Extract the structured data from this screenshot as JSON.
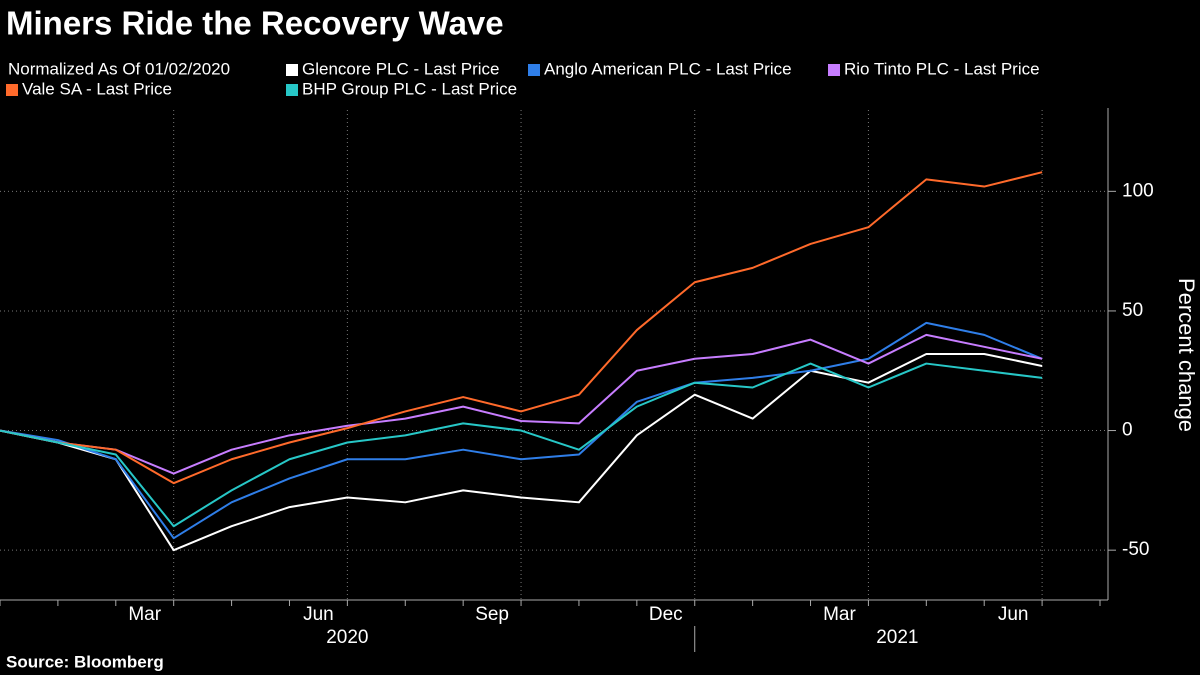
{
  "chart_data": {
    "type": "line",
    "title": "Miners Ride the Recovery Wave",
    "legend_title": "Normalized As Of 01/02/2020",
    "y_label": "Percent change",
    "source": "Source: Bloomberg",
    "x": [
      "2020-01",
      "2020-02",
      "2020-03",
      "2020-04",
      "2020-05",
      "2020-06",
      "2020-07",
      "2020-08",
      "2020-09",
      "2020-10",
      "2020-11",
      "2020-12",
      "2021-01",
      "2021-02",
      "2021-03",
      "2021-04",
      "2021-05",
      "2021-06",
      "2021-07"
    ],
    "xlim": [
      "2020-01",
      "2021-08"
    ],
    "xticks": [
      {
        "value": "2020-03",
        "label": "Mar"
      },
      {
        "value": "2020-06",
        "label": "Jun"
      },
      {
        "value": "2020-09",
        "label": "Sep"
      },
      {
        "value": "2020-12",
        "label": "Dec"
      },
      {
        "value": "2021-03",
        "label": "Mar"
      },
      {
        "value": "2021-06",
        "label": "Jun"
      }
    ],
    "year_labels": [
      "2020",
      "2021"
    ],
    "ylim": [
      -70,
      134
    ],
    "yticks": [
      -50,
      0,
      50,
      100
    ],
    "grid": true,
    "series": [
      {
        "name": "Glencore PLC - Last Price",
        "color": "#ffffff",
        "values": [
          0,
          -5,
          -12,
          -50,
          -40,
          -32,
          -28,
          -30,
          -25,
          -28,
          -30,
          -2,
          15,
          5,
          25,
          20,
          32,
          32,
          27
        ]
      },
      {
        "name": "Anglo American PLC - Last Price",
        "color": "#2f7ee8",
        "values": [
          0,
          -4,
          -12,
          -45,
          -30,
          -20,
          -12,
          -12,
          -8,
          -12,
          -10,
          12,
          20,
          22,
          25,
          30,
          45,
          40,
          30
        ]
      },
      {
        "name": "Rio Tinto PLC - Last Price",
        "color": "#c77dff",
        "values": [
          0,
          -5,
          -8,
          -18,
          -8,
          -2,
          2,
          5,
          10,
          4,
          3,
          25,
          30,
          32,
          38,
          28,
          40,
          35,
          30
        ]
      },
      {
        "name": "Vale SA - Last Price",
        "color": "#ff6a2b",
        "values": [
          0,
          -5,
          -8,
          -22,
          -12,
          -5,
          1,
          8,
          14,
          8,
          15,
          42,
          62,
          68,
          78,
          85,
          105,
          102,
          108
        ]
      },
      {
        "name": "BHP Group PLC - Last Price",
        "color": "#27c7c7",
        "values": [
          0,
          -5,
          -10,
          -40,
          -25,
          -12,
          -5,
          -2,
          3,
          0,
          -8,
          10,
          20,
          18,
          28,
          18,
          28,
          25,
          22
        ]
      }
    ]
  }
}
